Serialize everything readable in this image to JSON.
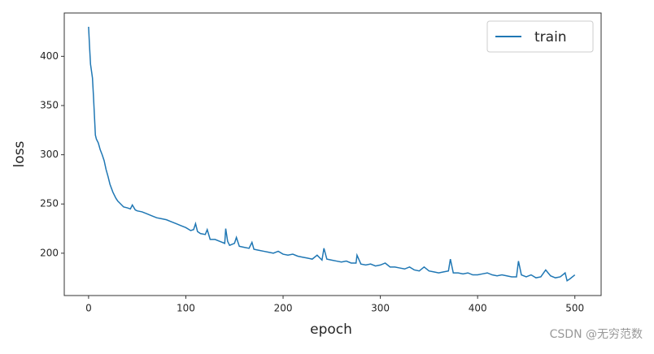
{
  "chart_data": {
    "type": "line",
    "xlabel": "epoch",
    "ylabel": "loss",
    "watermark": "CSDN @无穷范数",
    "legend": "upper right",
    "xlim": [
      -25,
      527
    ],
    "ylim": [
      157,
      444
    ],
    "xticks": [
      0,
      100,
      200,
      300,
      400,
      500
    ],
    "yticks": [
      200,
      250,
      300,
      350,
      400
    ],
    "x": [
      0,
      1,
      2,
      3,
      4,
      5,
      6,
      7,
      8,
      10,
      12,
      14,
      16,
      18,
      20,
      22,
      25,
      28,
      30,
      33,
      36,
      40,
      43,
      45,
      48,
      50,
      55,
      60,
      65,
      70,
      75,
      80,
      85,
      90,
      95,
      100,
      105,
      108,
      110,
      112,
      115,
      120,
      122,
      125,
      130,
      135,
      140,
      141,
      143,
      145,
      150,
      152,
      155,
      160,
      165,
      168,
      170,
      175,
      180,
      185,
      190,
      195,
      200,
      205,
      210,
      215,
      220,
      225,
      230,
      235,
      240,
      242,
      245,
      250,
      255,
      260,
      265,
      270,
      275,
      276,
      280,
      285,
      290,
      295,
      300,
      305,
      310,
      315,
      320,
      325,
      330,
      335,
      340,
      345,
      350,
      355,
      360,
      365,
      370,
      372,
      375,
      380,
      385,
      390,
      395,
      400,
      405,
      410,
      415,
      420,
      425,
      430,
      435,
      440,
      442,
      445,
      450,
      455,
      460,
      465,
      470,
      475,
      480,
      485,
      490,
      492,
      495,
      500
    ],
    "series": [
      {
        "name": "train",
        "color": "#1f77b4",
        "values": [
          430,
          410,
          392,
          385,
          378,
          360,
          340,
          320,
          316,
          312,
          305,
          300,
          294,
          285,
          278,
          270,
          262,
          256,
          253,
          250,
          247,
          246,
          245,
          249,
          244,
          243,
          242,
          240,
          238,
          236,
          235,
          234,
          232,
          230,
          228,
          226,
          223,
          224,
          230,
          222,
          220,
          219,
          224,
          214,
          214,
          212,
          210,
          225,
          212,
          208,
          210,
          216,
          207,
          206,
          205,
          211,
          204,
          203,
          202,
          201,
          200,
          202,
          199,
          198,
          199,
          197,
          196,
          195,
          194,
          198,
          193,
          205,
          194,
          193,
          192,
          191,
          192,
          190,
          190,
          198,
          189,
          188,
          189,
          187,
          188,
          190,
          186,
          186,
          185,
          184,
          186,
          183,
          182,
          186,
          182,
          181,
          180,
          181,
          182,
          194,
          180,
          180,
          179,
          180,
          178,
          178,
          179,
          180,
          178,
          177,
          178,
          177,
          176,
          176,
          192,
          178,
          176,
          178,
          175,
          176,
          183,
          177,
          175,
          176,
          180,
          172,
          174,
          178
        ]
      }
    ]
  }
}
